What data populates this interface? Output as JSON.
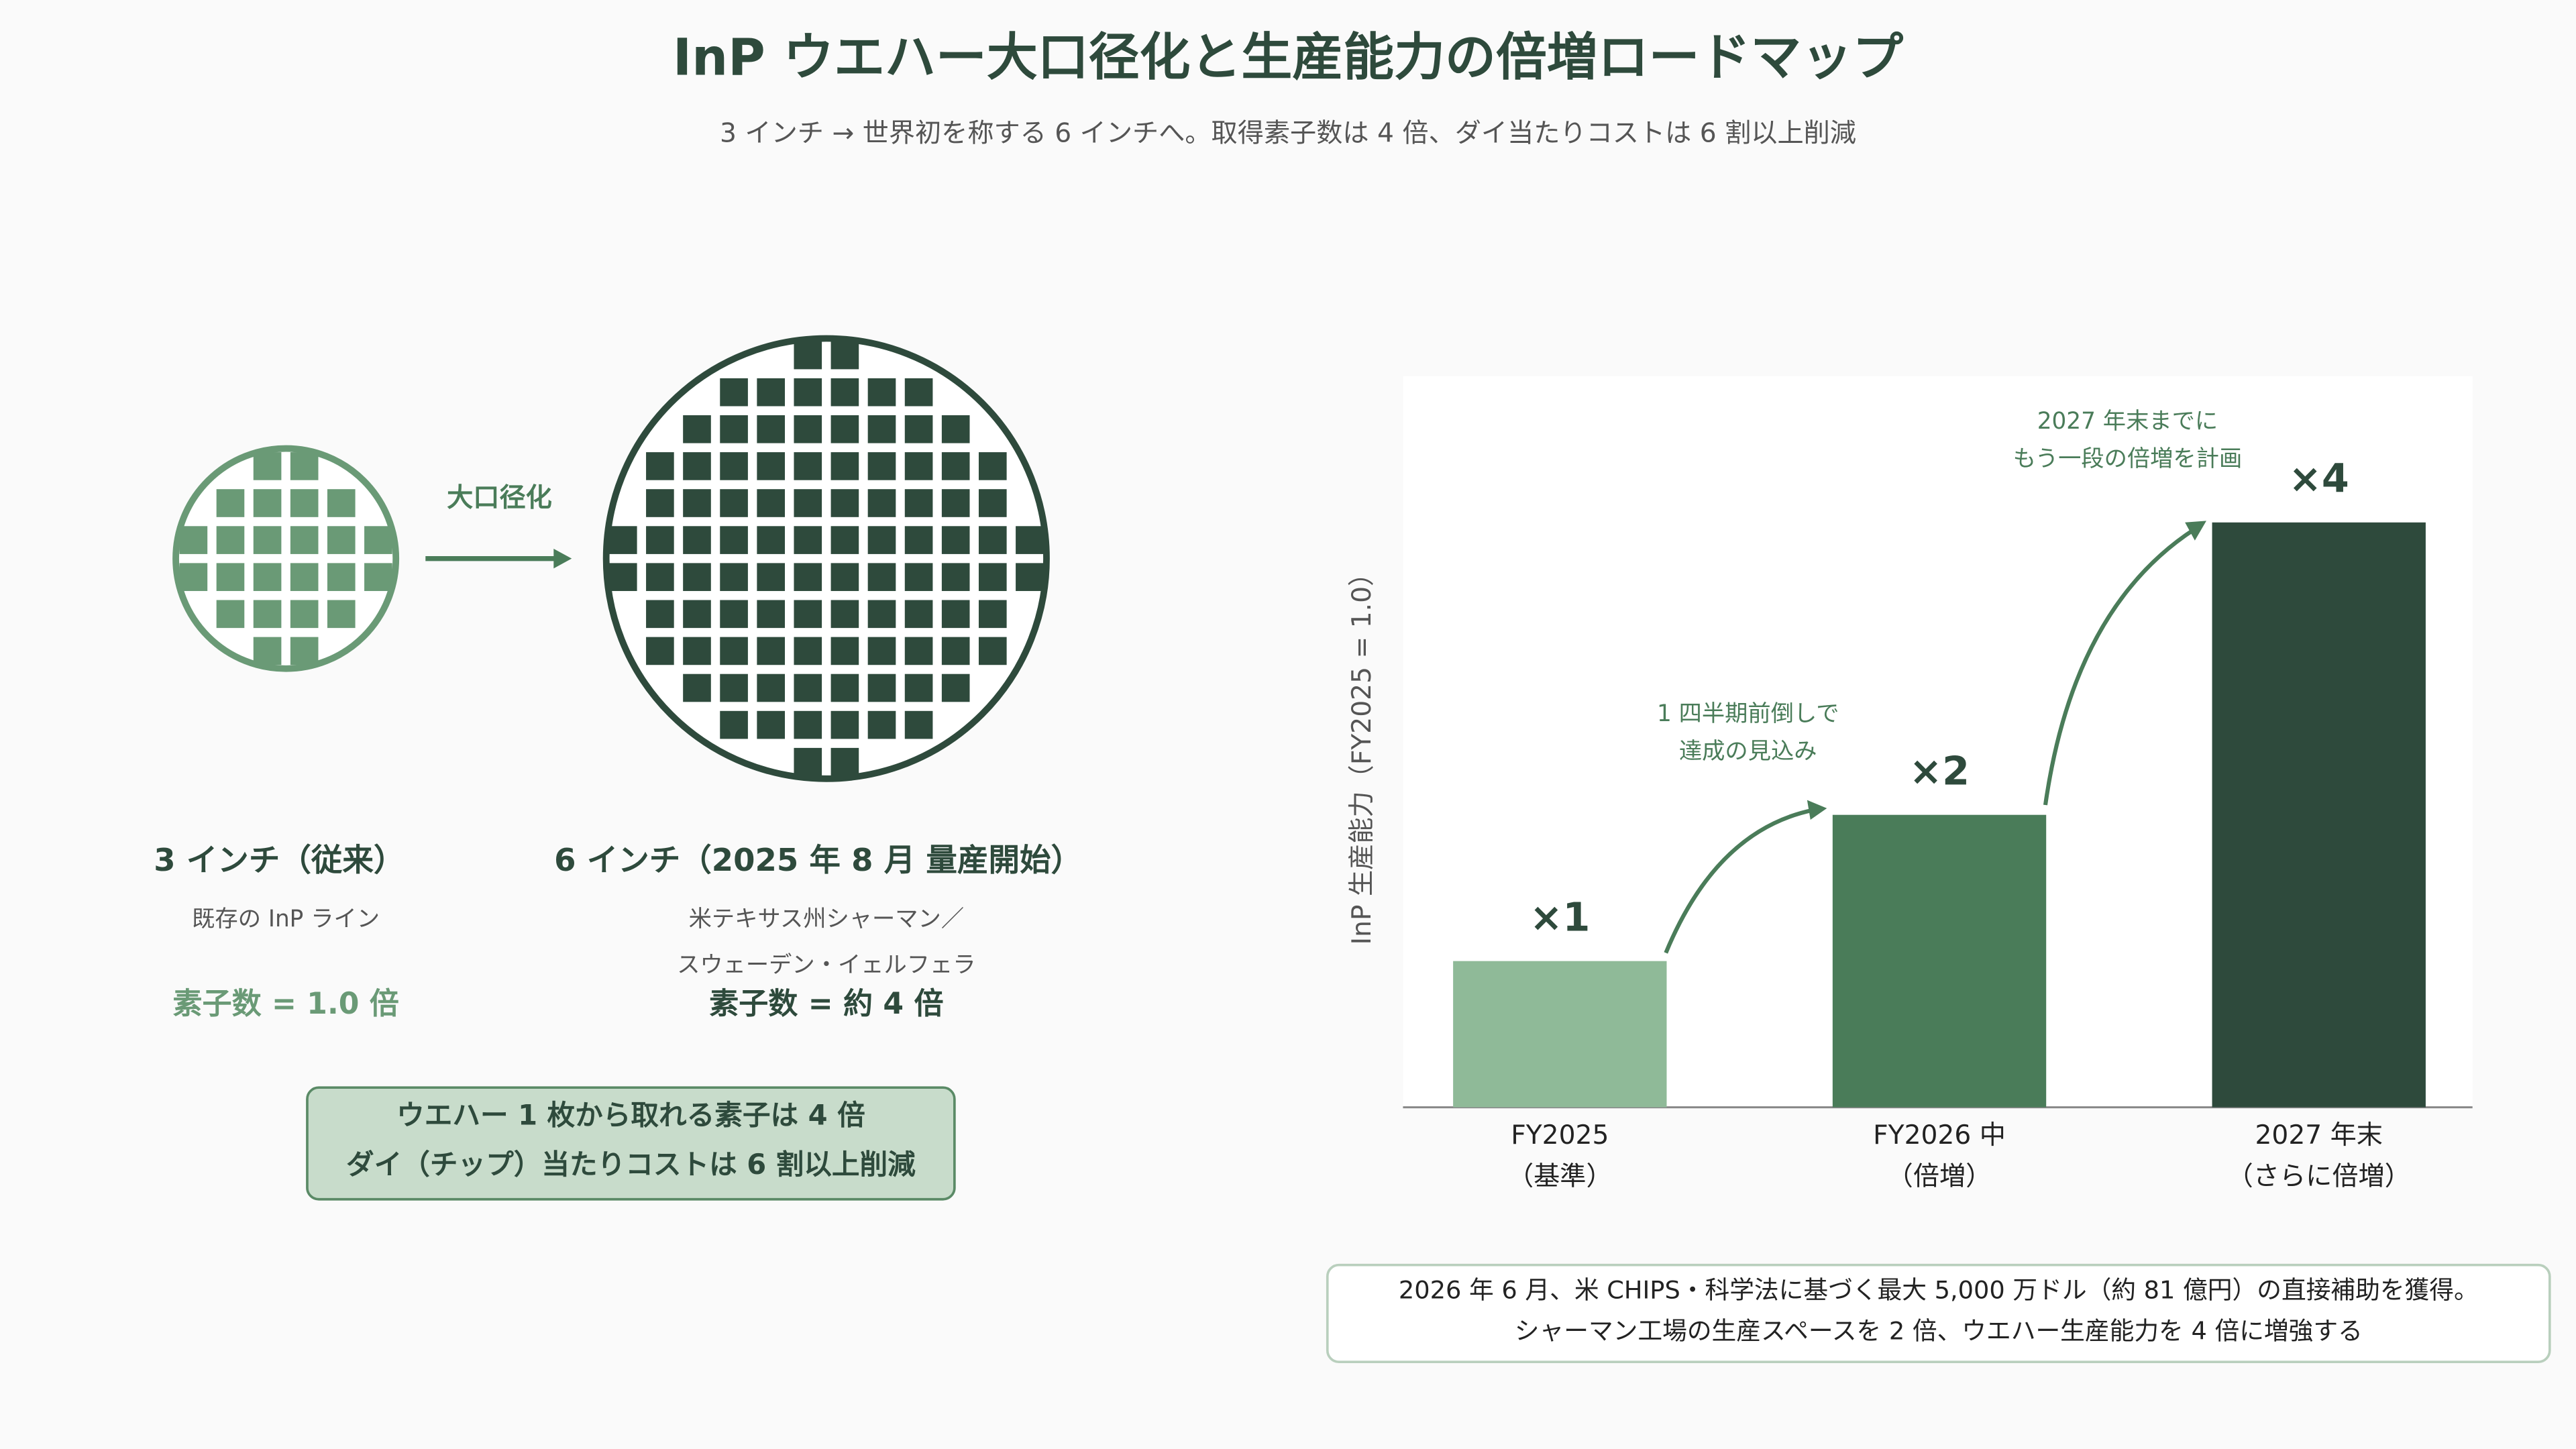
{
  "header": {
    "title": "InP ウエハー大口径化と生産能力の倍増ロードマップ",
    "subtitle": "3 インチ → 世界初を称する 6 インチへ。取得素子数は 4 倍、ダイ当たりコストは 6 割以上削減"
  },
  "wafers": {
    "arrow_label": "大口径化",
    "small": {
      "title": "3 インチ（従来）",
      "description": [
        "既存の InP ライン"
      ],
      "count": "素子数 = 1.0 倍"
    },
    "large": {
      "title": "6 インチ（2025 年 8 月 量産開始）",
      "description": [
        "米テキサス州シャーマン／",
        "スウェーデン・イェルフェラ"
      ],
      "count": "素子数 = 約 4 倍"
    }
  },
  "callout": [
    "ウエハー 1 枚から取れる素子は 4 倍",
    "ダイ（チップ）当たりコストは 6 割以上削減"
  ],
  "footnote": [
    "2026 年 6 月、米 CHIPS・科学法に基づく最大 5,000 万ドル（約 81 億円）の直接補助を獲得。",
    "シャーマン工場の生産スペースを 2 倍、ウエハー生産能力を 4 倍に増強する"
  ],
  "chart_data": {
    "type": "bar",
    "ylabel": "InP 生産能力（FY2025 = 1.0）",
    "categories": [
      "FY2025",
      "FY2026 中",
      "2027 年末"
    ],
    "category_notes": [
      "（基準）",
      "（倍増）",
      "（さらに倍増）"
    ],
    "values": [
      1,
      2,
      4
    ],
    "value_labels": [
      "×1",
      "×2",
      "×4"
    ],
    "colors": [
      "#8fba98",
      "#4a7c59",
      "#2e4a3c"
    ],
    "ylim": [
      0,
      5
    ],
    "annotations": [
      [
        "1 四半期前倒しで",
        "達成の見込み"
      ],
      [
        "2027 年末までに",
        "もう一段の倍増を計画"
      ]
    ]
  }
}
